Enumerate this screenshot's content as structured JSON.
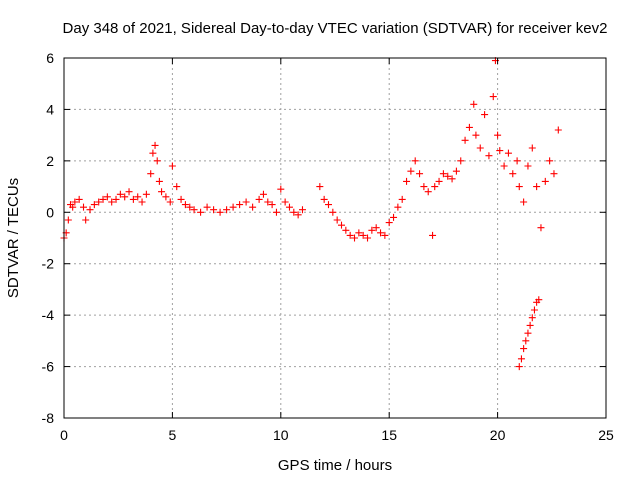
{
  "chart_data": {
    "type": "scatter",
    "title": "Day 348 of 2021, Sidereal Day-to-day VTEC variation (SDTVAR) for receiver kev2",
    "xlabel": "GPS time / hours",
    "ylabel": "SDTVAR / TECUs",
    "xlim": [
      0,
      25
    ],
    "ylim": [
      -8,
      6
    ],
    "xticks": [
      0,
      5,
      10,
      15,
      20,
      25
    ],
    "xtick_labels": [
      "0",
      "5",
      "10",
      "15",
      "20",
      "25"
    ],
    "yticks": [
      -8,
      -6,
      -4,
      -2,
      0,
      2,
      4,
      6
    ],
    "ytick_labels": [
      "-8",
      "-6",
      "-4",
      "-2",
      "0",
      "2",
      "4",
      "6"
    ],
    "grid": true,
    "marker": "plus",
    "color": "#ff0000",
    "series": [
      {
        "name": "SDTVAR",
        "x": [
          0.0,
          0.1,
          0.2,
          0.3,
          0.4,
          0.5,
          0.7,
          0.9,
          1.0,
          1.2,
          1.4,
          1.6,
          1.8,
          2.0,
          2.2,
          2.4,
          2.6,
          2.8,
          3.0,
          3.2,
          3.4,
          3.6,
          3.8,
          4.0,
          4.1,
          4.2,
          4.3,
          4.4,
          4.5,
          4.7,
          4.9,
          5.0,
          5.2,
          5.4,
          5.6,
          5.8,
          6.0,
          6.3,
          6.6,
          6.9,
          7.2,
          7.5,
          7.8,
          8.1,
          8.4,
          8.7,
          9.0,
          9.2,
          9.4,
          9.6,
          9.8,
          10.0,
          10.2,
          10.4,
          10.6,
          10.8,
          11.0,
          11.8,
          12.0,
          12.2,
          12.4,
          12.6,
          12.8,
          13.0,
          13.2,
          13.4,
          13.6,
          13.8,
          14.0,
          14.2,
          14.4,
          14.6,
          14.8,
          15.0,
          15.2,
          15.4,
          15.6,
          15.8,
          16.0,
          16.2,
          16.4,
          16.6,
          16.8,
          17.0,
          17.1,
          17.3,
          17.5,
          17.7,
          17.9,
          18.1,
          18.3,
          18.5,
          18.7,
          18.9,
          19.0,
          19.2,
          19.4,
          19.6,
          19.8,
          19.9,
          20.0,
          20.1,
          20.3,
          20.5,
          20.7,
          20.9,
          21.0,
          21.2,
          21.4,
          21.6,
          21.8,
          22.0,
          22.2,
          22.4,
          22.6,
          22.8,
          21.0,
          21.1,
          21.2,
          21.3,
          21.4,
          21.5,
          21.6,
          21.7,
          21.8,
          21.9
        ],
        "y": [
          -1.0,
          -0.8,
          -0.3,
          0.3,
          0.2,
          0.4,
          0.5,
          0.2,
          -0.3,
          0.1,
          0.3,
          0.4,
          0.5,
          0.6,
          0.4,
          0.5,
          0.7,
          0.6,
          0.8,
          0.5,
          0.6,
          0.4,
          0.7,
          1.5,
          2.3,
          2.6,
          2.0,
          1.2,
          0.8,
          0.6,
          0.4,
          1.8,
          1.0,
          0.5,
          0.3,
          0.2,
          0.1,
          0.0,
          0.2,
          0.1,
          0.0,
          0.1,
          0.2,
          0.3,
          0.4,
          0.2,
          0.5,
          0.7,
          0.4,
          0.3,
          0.0,
          0.9,
          0.4,
          0.2,
          0.0,
          -0.1,
          0.1,
          1.0,
          0.5,
          0.3,
          0.0,
          -0.3,
          -0.5,
          -0.7,
          -0.9,
          -1.0,
          -0.8,
          -0.9,
          -1.0,
          -0.7,
          -0.6,
          -0.8,
          -0.9,
          -0.4,
          -0.2,
          0.2,
          0.5,
          1.2,
          1.6,
          2.0,
          1.5,
          1.0,
          0.8,
          -0.9,
          1.0,
          1.2,
          1.5,
          1.4,
          1.3,
          1.6,
          2.0,
          2.8,
          3.3,
          4.2,
          3.0,
          2.5,
          3.8,
          2.2,
          4.5,
          5.9,
          3.0,
          2.4,
          1.8,
          2.3,
          1.5,
          2.0,
          1.0,
          0.4,
          1.8,
          2.5,
          1.0,
          -0.6,
          1.2,
          2.0,
          1.5,
          3.2,
          -6.0,
          -5.7,
          -5.3,
          -5.0,
          -4.7,
          -4.4,
          -4.1,
          -3.8,
          -3.5,
          -3.4
        ]
      }
    ]
  }
}
